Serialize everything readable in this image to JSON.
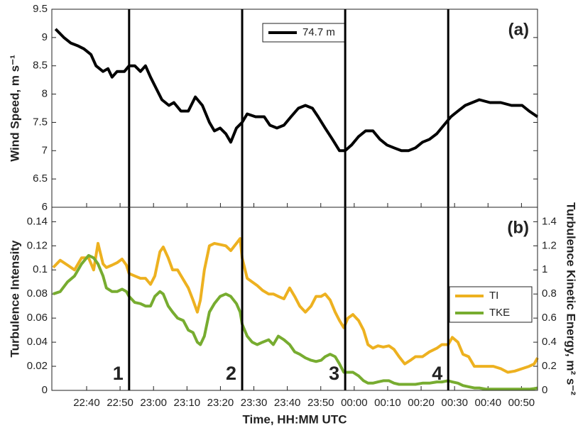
{
  "chart_data": [
    {
      "type": "line",
      "panel_label": "(a)",
      "y_label": "Wind Speed, m s⁻¹",
      "legend": "top",
      "xlim": [
        29.6,
        174.8
      ],
      "ylim": [
        6,
        9.5
      ],
      "yticks": [
        6,
        6.5,
        7,
        7.5,
        8,
        8.5,
        9,
        9.5
      ],
      "x": [
        30.7,
        33.2,
        35.3,
        37.5,
        39.2,
        41.3,
        42.8,
        44.9,
        46.4,
        47.6,
        49.1,
        51.3,
        52.7,
        54.4,
        56.1,
        57.6,
        59.1,
        60.8,
        62.5,
        64.6,
        66.1,
        68.2,
        70.4,
        72.5,
        74.6,
        76.7,
        78.2,
        79.9,
        81.6,
        83.1,
        84.8,
        86.5,
        88.0,
        90.5,
        93.1,
        94.8,
        96.9,
        99.0,
        101.1,
        103.3,
        105.4,
        107.5,
        109.2,
        111.3,
        113.5,
        115.6,
        117.3,
        119.2,
        121.3,
        123.4,
        125.6,
        127.7,
        129.8,
        131.9,
        134.1,
        136.2,
        138.3,
        140.4,
        142.5,
        144.7,
        146.8,
        148.9,
        151.0,
        153.2,
        155.3,
        157.4,
        160.6,
        163.8,
        167.0,
        170.2,
        172.3,
        174.8
      ],
      "series": [
        {
          "name": "74.7 m",
          "color": "#000000",
          "values": [
            9.15,
            9.0,
            8.9,
            8.85,
            8.8,
            8.7,
            8.5,
            8.4,
            8.45,
            8.3,
            8.4,
            8.4,
            8.5,
            8.5,
            8.4,
            8.5,
            8.3,
            8.1,
            7.9,
            7.8,
            7.85,
            7.7,
            7.7,
            7.95,
            7.8,
            7.5,
            7.35,
            7.4,
            7.3,
            7.15,
            7.4,
            7.5,
            7.65,
            7.6,
            7.6,
            7.45,
            7.4,
            7.45,
            7.6,
            7.75,
            7.8,
            7.75,
            7.6,
            7.4,
            7.2,
            7.0,
            7.0,
            7.1,
            7.25,
            7.35,
            7.35,
            7.2,
            7.1,
            7.05,
            7.0,
            7.0,
            7.05,
            7.15,
            7.2,
            7.3,
            7.45,
            7.6,
            7.7,
            7.8,
            7.85,
            7.9,
            7.85,
            7.85,
            7.8,
            7.8,
            7.7,
            7.6
          ]
        }
      ]
    },
    {
      "type": "line",
      "panel_label": "(b)",
      "y_label": "Turbulence Intensity",
      "y2_label": "Turbulence Kinetic Energy, m² s⁻²",
      "x_label": "Time, HH:MM UTC",
      "legend": "right",
      "xlim": [
        29.6,
        174.8
      ],
      "xticks": [
        {
          "value": 40,
          "label": "22:40"
        },
        {
          "value": 50,
          "label": "22:50"
        },
        {
          "value": 60,
          "label": "23:00"
        },
        {
          "value": 70,
          "label": "23:10"
        },
        {
          "value": 80,
          "label": "23:20"
        },
        {
          "value": 90,
          "label": "23:30"
        },
        {
          "value": 100,
          "label": "23:40"
        },
        {
          "value": 110,
          "label": "23:50"
        },
        {
          "value": 120,
          "label": "00:00"
        },
        {
          "value": 130,
          "label": "00:10"
        },
        {
          "value": 140,
          "label": "00:20"
        },
        {
          "value": 150,
          "label": "00:30"
        },
        {
          "value": 160,
          "label": "00:40"
        },
        {
          "value": 170,
          "label": "00:50"
        }
      ],
      "ylim": [
        0,
        0.152
      ],
      "yticks": [
        0,
        0.02,
        0.04,
        0.06,
        0.08,
        0.1,
        0.12,
        0.14
      ],
      "y2lim": [
        0,
        1.52
      ],
      "y2ticks": [
        0,
        0.2,
        0.4,
        0.6,
        0.8,
        1,
        1.2,
        1.4
      ],
      "markers": [
        {
          "x": 52.7,
          "label": "1"
        },
        {
          "x": 86.5,
          "label": "2"
        },
        {
          "x": 117.3,
          "label": "3"
        },
        {
          "x": 148.1,
          "label": "4"
        }
      ],
      "x": [
        30.0,
        32.1,
        34.3,
        36.4,
        38.5,
        40.6,
        42.1,
        43.4,
        44.9,
        45.9,
        47.6,
        49.1,
        50.6,
        51.9,
        52.7,
        54.4,
        56.1,
        57.6,
        59.1,
        60.4,
        61.9,
        62.9,
        64.4,
        65.7,
        67.2,
        68.9,
        70.4,
        71.8,
        73.1,
        74.0,
        75.2,
        76.7,
        78.2,
        79.9,
        81.6,
        83.1,
        84.8,
        85.9,
        86.5,
        88.0,
        89.5,
        91.0,
        92.6,
        94.4,
        95.8,
        97.3,
        99.0,
        100.7,
        102.2,
        103.7,
        105.4,
        107.1,
        108.6,
        110.1,
        111.3,
        112.8,
        114.3,
        115.6,
        116.9,
        118.1,
        119.6,
        121.3,
        122.8,
        124.1,
        125.6,
        127.1,
        128.7,
        130.4,
        131.9,
        133.4,
        135.1,
        136.8,
        138.3,
        140.4,
        142.5,
        144.7,
        146.2,
        148.1,
        149.3,
        151.0,
        152.5,
        154.2,
        155.9,
        157.4,
        159.5,
        161.6,
        163.8,
        165.9,
        168.0,
        170.2,
        172.3,
        173.8,
        174.8
      ],
      "series": [
        {
          "name": "TI",
          "color": "#EDB120",
          "values": [
            0.102,
            0.108,
            0.104,
            0.1,
            0.11,
            0.11,
            0.1,
            0.122,
            0.105,
            0.102,
            0.104,
            0.106,
            0.109,
            0.104,
            0.097,
            0.095,
            0.093,
            0.093,
            0.088,
            0.095,
            0.115,
            0.119,
            0.11,
            0.1,
            0.1,
            0.092,
            0.085,
            0.075,
            0.065,
            0.075,
            0.1,
            0.12,
            0.122,
            0.121,
            0.12,
            0.116,
            0.122,
            0.126,
            0.11,
            0.093,
            0.09,
            0.087,
            0.083,
            0.08,
            0.08,
            0.078,
            0.076,
            0.085,
            0.078,
            0.07,
            0.065,
            0.07,
            0.078,
            0.078,
            0.08,
            0.075,
            0.065,
            0.058,
            0.052,
            0.06,
            0.063,
            0.058,
            0.05,
            0.038,
            0.035,
            0.037,
            0.036,
            0.037,
            0.034,
            0.028,
            0.022,
            0.025,
            0.028,
            0.028,
            0.032,
            0.035,
            0.038,
            0.038,
            0.044,
            0.04,
            0.03,
            0.028,
            0.02,
            0.02,
            0.02,
            0.02,
            0.018,
            0.015,
            0.016,
            0.018,
            0.02,
            0.022,
            0.027
          ]
        },
        {
          "name": "TKE",
          "color": "#77AC30",
          "axis": "y2",
          "values": [
            0.8,
            0.82,
            0.9,
            0.95,
            1.05,
            1.12,
            1.1,
            1.05,
            0.95,
            0.85,
            0.82,
            0.82,
            0.84,
            0.82,
            0.78,
            0.73,
            0.72,
            0.7,
            0.7,
            0.78,
            0.82,
            0.8,
            0.7,
            0.65,
            0.6,
            0.58,
            0.5,
            0.48,
            0.4,
            0.38,
            0.45,
            0.65,
            0.72,
            0.78,
            0.8,
            0.78,
            0.72,
            0.65,
            0.55,
            0.45,
            0.4,
            0.38,
            0.4,
            0.42,
            0.38,
            0.45,
            0.42,
            0.38,
            0.32,
            0.3,
            0.27,
            0.25,
            0.24,
            0.25,
            0.28,
            0.3,
            0.28,
            0.22,
            0.15,
            0.15,
            0.15,
            0.12,
            0.08,
            0.06,
            0.06,
            0.07,
            0.08,
            0.08,
            0.06,
            0.05,
            0.05,
            0.05,
            0.05,
            0.06,
            0.06,
            0.07,
            0.07,
            0.08,
            0.07,
            0.06,
            0.04,
            0.03,
            0.02,
            0.02,
            0.01,
            0.01,
            0.01,
            0.01,
            0.01,
            0.01,
            0.01,
            0.015,
            0.02
          ]
        }
      ]
    }
  ]
}
